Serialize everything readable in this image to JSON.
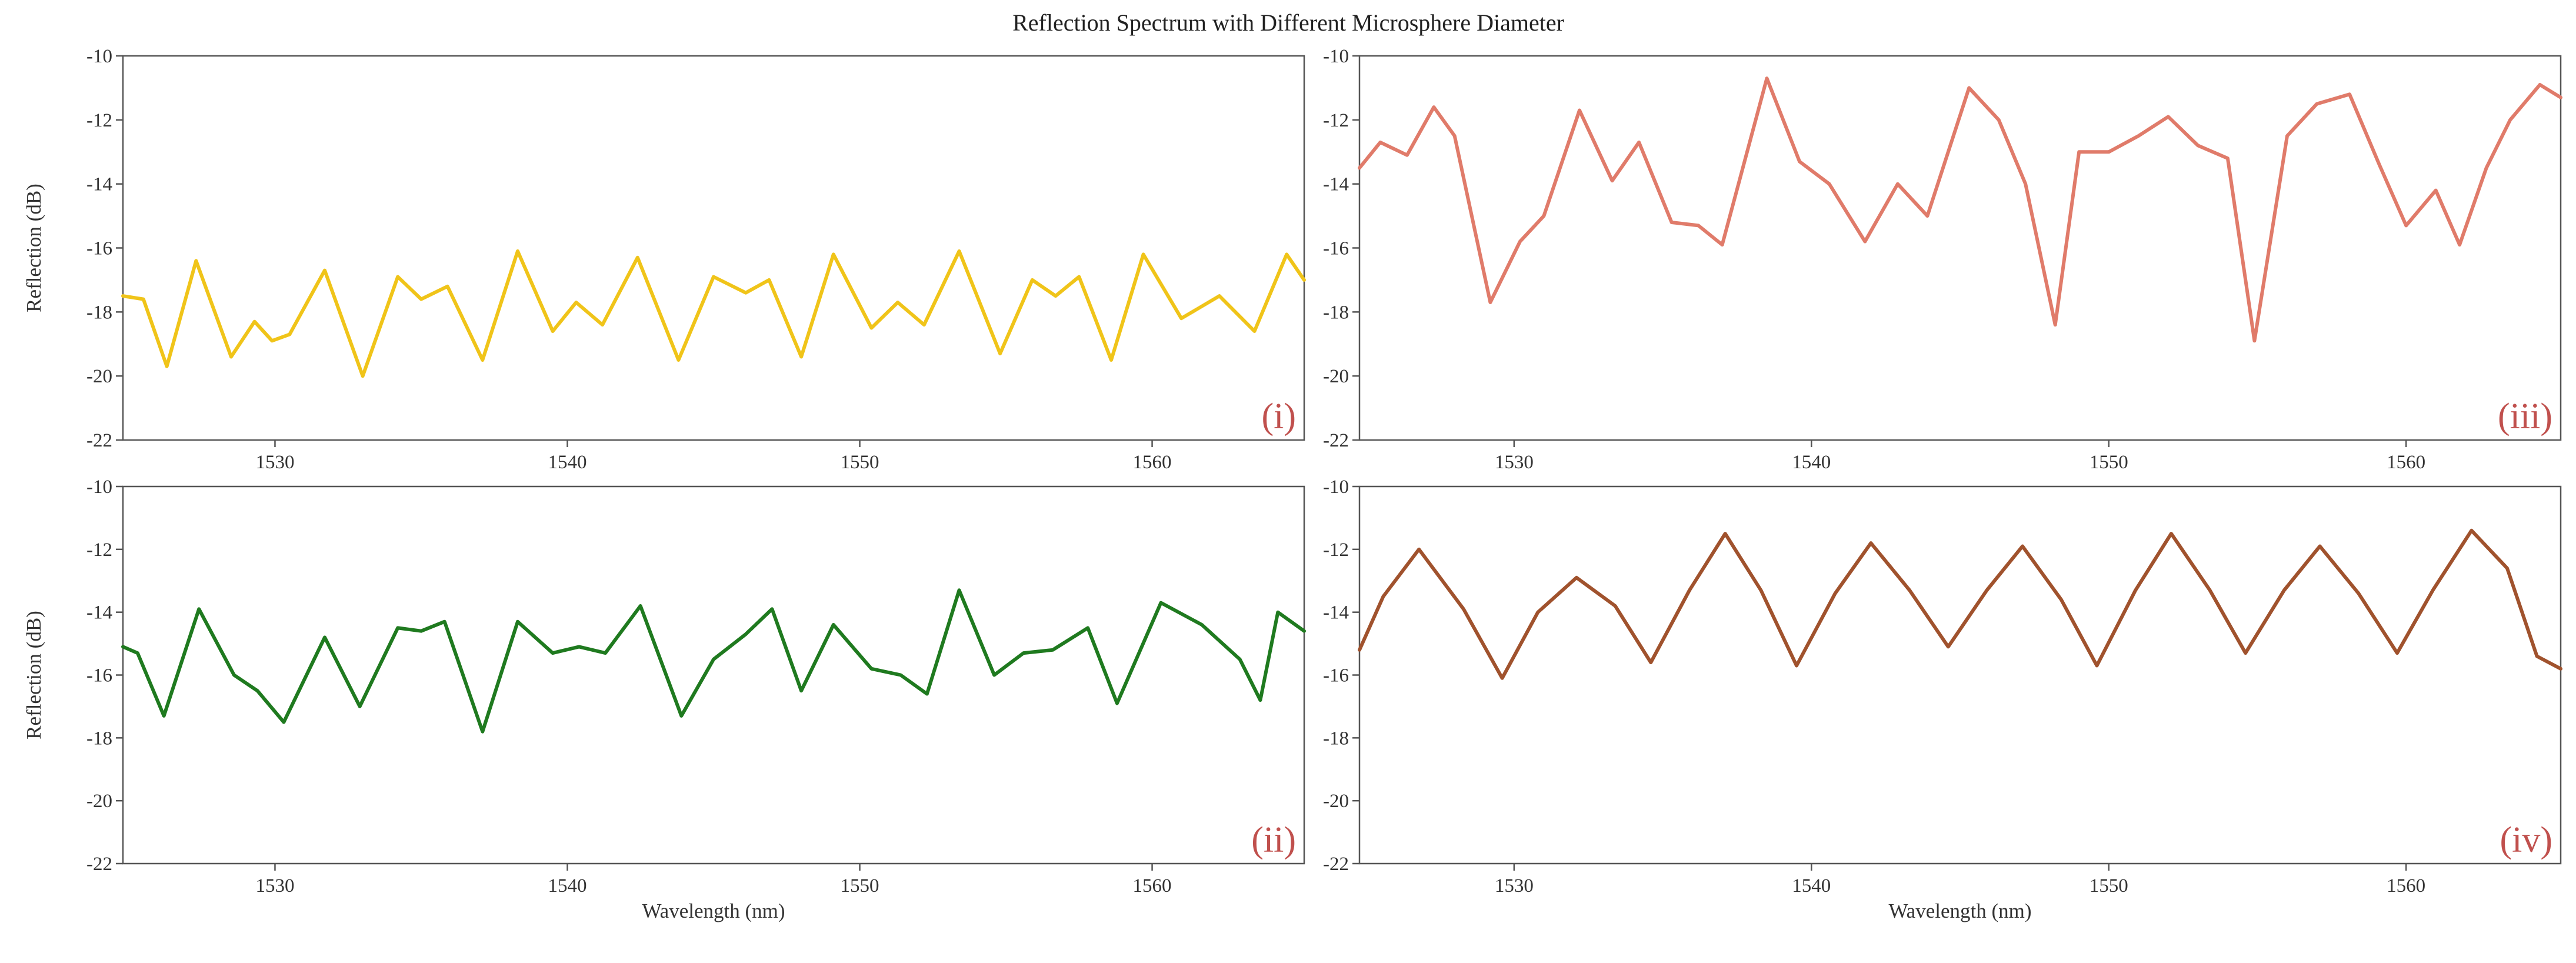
{
  "figure_title": "Reflection Spectrum with Different Microsphere Diameter",
  "chart_data": [
    {
      "type": "line",
      "panel_tag": "(i)",
      "color": "#f0c419",
      "xlabel": "",
      "ylabel": "Reflection (dB)",
      "xlim": [
        1524.8,
        1565.2
      ],
      "ylim": [
        -22,
        -10
      ],
      "xticks": [
        1530,
        1540,
        1550,
        1560
      ],
      "xtick_labels": [
        "1530",
        "1540",
        "1550",
        "1560"
      ],
      "yticks": [
        -10,
        -12,
        -14,
        -16,
        -18,
        -20,
        -22
      ],
      "ytick_labels": [
        "-10",
        "-12",
        "-14",
        "-16",
        "-18",
        "-20",
        "-22"
      ],
      "series": [
        {
          "name": "(i)",
          "x": [
            1524.8,
            1525.5,
            1526.3,
            1527.3,
            1528.5,
            1529.3,
            1529.9,
            1530.5,
            1531.7,
            1533.0,
            1534.2,
            1535.0,
            1535.9,
            1537.1,
            1538.3,
            1539.5,
            1540.3,
            1541.2,
            1542.4,
            1543.8,
            1545.0,
            1546.1,
            1546.9,
            1548.0,
            1549.1,
            1550.4,
            1551.3,
            1552.2,
            1553.4,
            1554.8,
            1555.9,
            1556.7,
            1557.5,
            1558.6,
            1559.7,
            1561.0,
            1562.3,
            1563.5,
            1564.6,
            1565.2
          ],
          "y": [
            -17.5,
            -17.6,
            -19.7,
            -16.4,
            -19.4,
            -18.3,
            -18.9,
            -18.7,
            -16.7,
            -20.0,
            -16.9,
            -17.6,
            -17.2,
            -19.5,
            -16.1,
            -18.6,
            -17.7,
            -18.4,
            -16.3,
            -19.5,
            -16.9,
            -17.4,
            -17.0,
            -19.4,
            -16.2,
            -18.5,
            -17.7,
            -18.4,
            -16.1,
            -19.3,
            -17.0,
            -17.5,
            -16.9,
            -19.5,
            -16.2,
            -18.2,
            -17.5,
            -18.6,
            -16.2,
            -17.0
          ]
        }
      ]
    },
    {
      "type": "line",
      "panel_tag": "(ii)",
      "color": "#1f7a1f",
      "xlabel": "Wavelength (nm)",
      "ylabel": "Reflection (dB)",
      "xlim": [
        1524.8,
        1565.2
      ],
      "ylim": [
        -22,
        -10
      ],
      "xticks": [
        1530,
        1540,
        1550,
        1560
      ],
      "xtick_labels": [
        "1530",
        "1540",
        "1550",
        "1560"
      ],
      "yticks": [
        -10,
        -12,
        -14,
        -16,
        -18,
        -20,
        -22
      ],
      "ytick_labels": [
        "-10",
        "-12",
        "-14",
        "-16",
        "-18",
        "-20",
        "-22"
      ],
      "series": [
        {
          "name": "(ii)",
          "x": [
            1524.8,
            1525.3,
            1526.2,
            1527.4,
            1528.6,
            1529.4,
            1530.3,
            1531.7,
            1532.9,
            1534.2,
            1535.0,
            1535.8,
            1537.1,
            1538.3,
            1539.5,
            1540.4,
            1541.3,
            1542.5,
            1543.9,
            1545.0,
            1546.1,
            1547.0,
            1548.0,
            1549.1,
            1550.4,
            1551.4,
            1552.3,
            1553.4,
            1554.6,
            1555.6,
            1556.6,
            1557.8,
            1558.8,
            1560.3,
            1561.7,
            1563.0,
            1563.7,
            1564.3,
            1565.2
          ],
          "y": [
            -15.1,
            -15.3,
            -17.3,
            -13.9,
            -16.0,
            -16.5,
            -17.5,
            -14.8,
            -17.0,
            -14.5,
            -14.6,
            -14.3,
            -17.8,
            -14.3,
            -15.3,
            -15.1,
            -15.3,
            -13.8,
            -17.3,
            -15.5,
            -14.7,
            -13.9,
            -16.5,
            -14.4,
            -15.8,
            -16.0,
            -16.6,
            -13.3,
            -16.0,
            -15.3,
            -15.2,
            -14.5,
            -16.9,
            -13.7,
            -14.4,
            -15.5,
            -16.8,
            -14.0,
            -14.6
          ]
        }
      ]
    },
    {
      "type": "line",
      "panel_tag": "(iii)",
      "color": "#e07b6a",
      "xlabel": "",
      "ylabel": "",
      "xlim": [
        1524.8,
        1565.2
      ],
      "ylim": [
        -22,
        -10
      ],
      "xticks": [
        1530,
        1540,
        1550,
        1560
      ],
      "xtick_labels": [
        "1530",
        "1540",
        "1550",
        "1560"
      ],
      "yticks": [
        -10,
        -12,
        -14,
        -16,
        -18,
        -20,
        -22
      ],
      "ytick_labels": [
        "-10",
        "-12",
        "-14",
        "-16",
        "-18",
        "-20",
        "-22"
      ],
      "series": [
        {
          "name": "(iii)",
          "x": [
            1524.8,
            1525.5,
            1526.4,
            1527.3,
            1528.0,
            1529.2,
            1530.2,
            1531.0,
            1532.2,
            1533.3,
            1534.2,
            1535.3,
            1536.2,
            1537.0,
            1538.5,
            1539.6,
            1540.6,
            1541.8,
            1542.9,
            1543.9,
            1545.3,
            1546.3,
            1547.2,
            1548.2,
            1549.0,
            1550.0,
            1551.0,
            1552.0,
            1553.0,
            1554.0,
            1554.9,
            1556.0,
            1557.0,
            1558.1,
            1559.1,
            1560.0,
            1561.0,
            1561.8,
            1562.7,
            1563.5,
            1564.5,
            1565.2
          ],
          "y": [
            -13.5,
            -12.7,
            -13.1,
            -11.6,
            -12.5,
            -17.7,
            -15.8,
            -15.0,
            -11.7,
            -13.9,
            -12.7,
            -15.2,
            -15.3,
            -15.9,
            -10.7,
            -13.3,
            -14.0,
            -15.8,
            -14.0,
            -15.0,
            -11.0,
            -12.0,
            -14.0,
            -18.4,
            -13.0,
            -13.0,
            -12.5,
            -11.9,
            -12.8,
            -13.2,
            -18.9,
            -12.5,
            -11.5,
            -11.2,
            -13.4,
            -15.3,
            -14.2,
            -15.9,
            -13.5,
            -12.0,
            -10.9,
            -11.3
          ]
        }
      ]
    },
    {
      "type": "line",
      "panel_tag": "(iv)",
      "color": "#a0522d",
      "xlabel": "Wavelength (nm)",
      "ylabel": "",
      "xlim": [
        1524.8,
        1565.2
      ],
      "ylim": [
        -22,
        -10
      ],
      "xticks": [
        1530,
        1540,
        1550,
        1560
      ],
      "xtick_labels": [
        "1530",
        "1540",
        "1550",
        "1560"
      ],
      "yticks": [
        -10,
        -12,
        -14,
        -16,
        -18,
        -20,
        -22
      ],
      "ytick_labels": [
        "-10",
        "-12",
        "-14",
        "-16",
        "-18",
        "-20",
        "-22"
      ],
      "series": [
        {
          "name": "(iv)",
          "x": [
            1524.8,
            1525.6,
            1526.8,
            1528.3,
            1529.6,
            1530.8,
            1532.1,
            1533.4,
            1534.6,
            1535.9,
            1537.1,
            1538.3,
            1539.5,
            1540.8,
            1542.0,
            1543.3,
            1544.6,
            1545.9,
            1547.1,
            1548.4,
            1549.6,
            1550.9,
            1552.1,
            1553.4,
            1554.6,
            1555.9,
            1557.1,
            1558.4,
            1559.7,
            1560.9,
            1562.2,
            1563.4,
            1564.4,
            1565.2
          ],
          "y": [
            -15.2,
            -13.5,
            -12.0,
            -13.9,
            -16.1,
            -14.0,
            -12.9,
            -13.8,
            -15.6,
            -13.3,
            -11.5,
            -13.3,
            -15.7,
            -13.4,
            -11.8,
            -13.3,
            -15.1,
            -13.3,
            -11.9,
            -13.6,
            -15.7,
            -13.3,
            -11.5,
            -13.3,
            -15.3,
            -13.3,
            -11.9,
            -13.4,
            -15.3,
            -13.3,
            -11.4,
            -12.6,
            -15.4,
            -15.8
          ]
        }
      ]
    }
  ]
}
